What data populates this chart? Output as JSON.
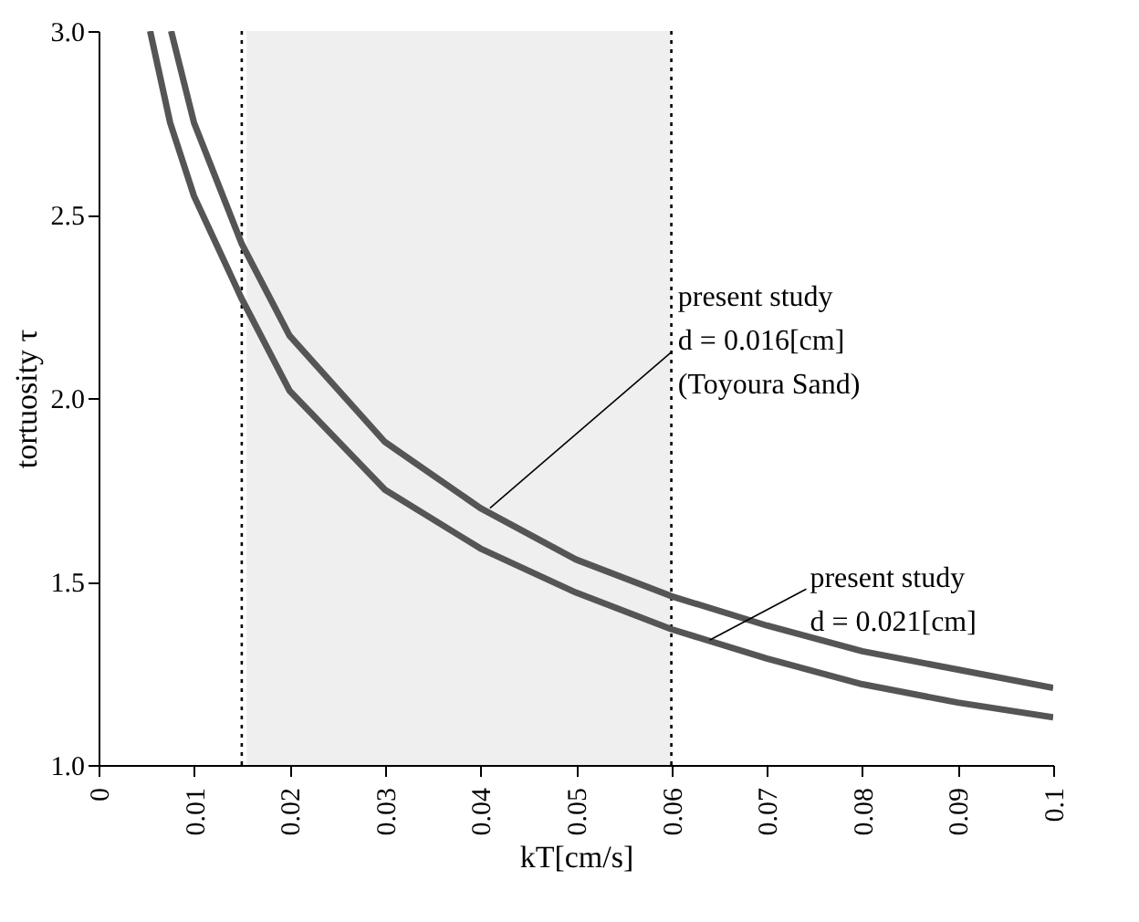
{
  "chart_data": {
    "type": "line",
    "xlabel": "kT[cm/s]",
    "ylabel": "tortuosity  τ",
    "xlim": [
      0,
      0.1
    ],
    "ylim": [
      1.0,
      3.0
    ],
    "xticks": [
      0,
      0.01,
      0.02,
      0.03,
      0.04,
      0.05,
      0.06,
      0.07,
      0.08,
      0.09,
      0.1
    ],
    "yticks": [
      {
        "value": 1.0,
        "label": "1.0"
      },
      1.5,
      {
        "value": 2.0,
        "label": "2.0"
      },
      2.5,
      {
        "value": 3.0,
        "label": "3.0"
      }
    ],
    "grid": false,
    "line_style": "solid",
    "marker": "none",
    "series": [
      {
        "color": "#555555",
        "x": [
          0.0076,
          0.01,
          0.015,
          0.02,
          0.03,
          0.04,
          0.05,
          0.06,
          0.07,
          0.08,
          0.09,
          0.1
        ],
        "values": [
          3.0,
          2.75,
          2.42,
          2.17,
          1.88,
          1.7,
          1.56,
          1.46,
          1.38,
          1.31,
          1.26,
          1.21
        ]
      },
      {
        "color": "#555555",
        "x": [
          0.0054,
          0.0075,
          0.01,
          0.015,
          0.02,
          0.03,
          0.04,
          0.05,
          0.06,
          0.07,
          0.08,
          0.09,
          0.1
        ],
        "values": [
          3.0,
          2.75,
          2.55,
          2.27,
          2.02,
          1.75,
          1.59,
          1.47,
          1.37,
          1.29,
          1.22,
          1.17,
          1.13
        ]
      }
    ],
    "ref_lines": [
      {
        "axis": "x",
        "value": 0.015,
        "line_style": "dotted",
        "color": "#000000"
      },
      {
        "axis": "x",
        "value": 0.06,
        "line_style": "dotted",
        "color": "#000000"
      }
    ],
    "bands": [
      {
        "axis": "x",
        "from": 0.0155,
        "to": 0.06,
        "color": "#efefef"
      }
    ],
    "annotations": [
      {
        "text": "present study\n    d = 0.016[cm]\n    (Toyoura Sand)",
        "x": 0.041,
        "y": 1.7
      },
      {
        "text": "present study\n    d = 0.021[cm]",
        "x": 0.064,
        "y": 1.34
      }
    ]
  }
}
